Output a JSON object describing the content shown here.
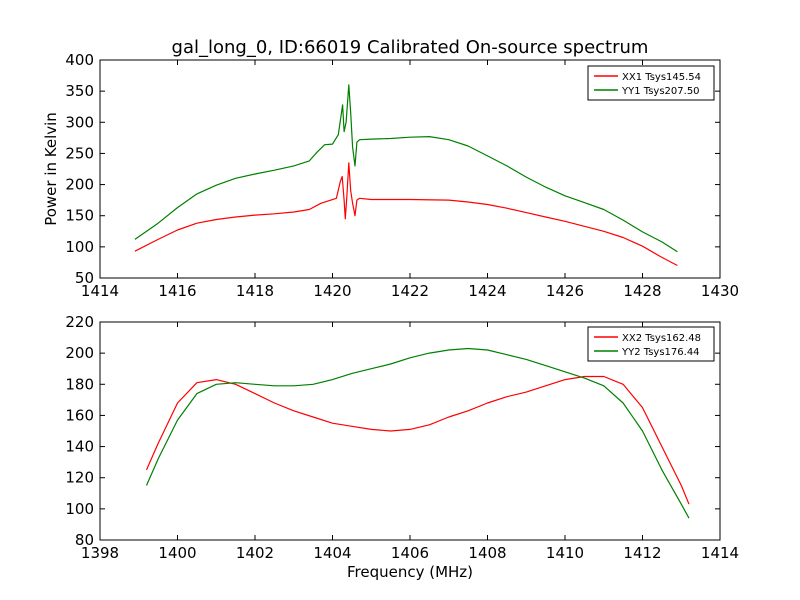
{
  "chart_data": [
    {
      "type": "line",
      "title": "gal_long_0, ID:66019 Calibrated On-source spectrum",
      "xlabel": "",
      "ylabel": "Power in Kelvin",
      "xlim": [
        1414,
        1430
      ],
      "ylim": [
        50,
        400
      ],
      "xticks": [
        "1414",
        "1416",
        "1418",
        "1420",
        "1422",
        "1424",
        "1426",
        "1428",
        "1430"
      ],
      "yticks": [
        "50",
        "100",
        "150",
        "200",
        "250",
        "300",
        "350",
        "400"
      ],
      "legend_position": "top-right",
      "series": [
        {
          "name": "XX1 Tsys145.54",
          "color": "#ff0000",
          "points": [
            [
              1414.9,
              93
            ],
            [
              1415.5,
              112
            ],
            [
              1416,
              127
            ],
            [
              1416.5,
              138
            ],
            [
              1417,
              144
            ],
            [
              1417.5,
              148
            ],
            [
              1418,
              151
            ],
            [
              1418.5,
              153
            ],
            [
              1419,
              156
            ],
            [
              1419.4,
              160
            ],
            [
              1419.7,
              170
            ],
            [
              1419.9,
              174
            ],
            [
              1420.1,
              178
            ],
            [
              1420.2,
              205
            ],
            [
              1420.25,
              213
            ],
            [
              1420.3,
              175
            ],
            [
              1420.33,
              145
            ],
            [
              1420.37,
              180
            ],
            [
              1420.42,
              235
            ],
            [
              1420.47,
              190
            ],
            [
              1420.52,
              170
            ],
            [
              1420.58,
              150
            ],
            [
              1420.63,
              175
            ],
            [
              1420.7,
              178
            ],
            [
              1421,
              176
            ],
            [
              1422,
              176
            ],
            [
              1423,
              175
            ],
            [
              1423.5,
              172
            ],
            [
              1424,
              168
            ],
            [
              1424.5,
              162
            ],
            [
              1425,
              155
            ],
            [
              1425.5,
              148
            ],
            [
              1426,
              141
            ],
            [
              1426.5,
              133
            ],
            [
              1427,
              125
            ],
            [
              1427.5,
              115
            ],
            [
              1428,
              101
            ],
            [
              1428.5,
              83
            ],
            [
              1428.9,
              70
            ]
          ]
        },
        {
          "name": "YY1 Tsys207.50",
          "color": "#008000",
          "points": [
            [
              1414.9,
              112
            ],
            [
              1415.5,
              138
            ],
            [
              1416,
              163
            ],
            [
              1416.5,
              185
            ],
            [
              1417,
              199
            ],
            [
              1417.5,
              210
            ],
            [
              1418,
              217
            ],
            [
              1418.5,
              223
            ],
            [
              1419,
              230
            ],
            [
              1419.4,
              238
            ],
            [
              1419.6,
              252
            ],
            [
              1419.8,
              264
            ],
            [
              1420,
              265
            ],
            [
              1420.15,
              280
            ],
            [
              1420.22,
              310
            ],
            [
              1420.26,
              328
            ],
            [
              1420.3,
              285
            ],
            [
              1420.35,
              300
            ],
            [
              1420.42,
              360
            ],
            [
              1420.47,
              315
            ],
            [
              1420.52,
              260
            ],
            [
              1420.58,
              230
            ],
            [
              1420.63,
              268
            ],
            [
              1420.7,
              272
            ],
            [
              1421,
              273
            ],
            [
              1421.5,
              274
            ],
            [
              1422,
              276
            ],
            [
              1422.5,
              277
            ],
            [
              1423,
              272
            ],
            [
              1423.5,
              262
            ],
            [
              1424,
              246
            ],
            [
              1424.5,
              230
            ],
            [
              1425,
              212
            ],
            [
              1425.5,
              196
            ],
            [
              1426,
              182
            ],
            [
              1426.5,
              171
            ],
            [
              1427,
              160
            ],
            [
              1427.5,
              143
            ],
            [
              1428,
              124
            ],
            [
              1428.5,
              108
            ],
            [
              1428.9,
              92
            ]
          ]
        }
      ]
    },
    {
      "type": "line",
      "title": "",
      "xlabel": "Frequency (MHz)",
      "ylabel": "",
      "xlim": [
        1398,
        1414
      ],
      "ylim": [
        80,
        220
      ],
      "xticks": [
        "1398",
        "1400",
        "1402",
        "1404",
        "1406",
        "1408",
        "1410",
        "1412",
        "1414"
      ],
      "yticks": [
        "80",
        "100",
        "120",
        "140",
        "160",
        "180",
        "200",
        "220"
      ],
      "legend_position": "top-right",
      "series": [
        {
          "name": "XX2 Tsys162.48",
          "color": "#ff0000",
          "points": [
            [
              1399.2,
              125
            ],
            [
              1399.5,
              142
            ],
            [
              1400,
              168
            ],
            [
              1400.5,
              181
            ],
            [
              1401,
              183
            ],
            [
              1401.5,
              180
            ],
            [
              1402,
              174
            ],
            [
              1402.5,
              168
            ],
            [
              1403,
              163
            ],
            [
              1403.5,
              159
            ],
            [
              1404,
              155
            ],
            [
              1404.5,
              153
            ],
            [
              1405,
              151
            ],
            [
              1405.5,
              150
            ],
            [
              1406,
              151
            ],
            [
              1406.5,
              154
            ],
            [
              1407,
              159
            ],
            [
              1407.5,
              163
            ],
            [
              1408,
              168
            ],
            [
              1408.5,
              172
            ],
            [
              1409,
              175
            ],
            [
              1409.5,
              179
            ],
            [
              1410,
              183
            ],
            [
              1410.5,
              185
            ],
            [
              1411,
              185
            ],
            [
              1411.5,
              180
            ],
            [
              1412,
              165
            ],
            [
              1412.5,
              140
            ],
            [
              1413,
              115
            ],
            [
              1413.2,
              103
            ]
          ]
        },
        {
          "name": "YY2 Tsys176.44",
          "color": "#008000",
          "points": [
            [
              1399.2,
              115
            ],
            [
              1399.5,
              132
            ],
            [
              1400,
              157
            ],
            [
              1400.5,
              174
            ],
            [
              1401,
              180
            ],
            [
              1401.5,
              181
            ],
            [
              1402,
              180
            ],
            [
              1402.5,
              179
            ],
            [
              1403,
              179
            ],
            [
              1403.5,
              180
            ],
            [
              1404,
              183
            ],
            [
              1404.5,
              187
            ],
            [
              1405,
              190
            ],
            [
              1405.5,
              193
            ],
            [
              1406,
              197
            ],
            [
              1406.5,
              200
            ],
            [
              1407,
              202
            ],
            [
              1407.5,
              203
            ],
            [
              1408,
              202
            ],
            [
              1408.5,
              199
            ],
            [
              1409,
              196
            ],
            [
              1409.5,
              192
            ],
            [
              1410,
              188
            ],
            [
              1410.5,
              184
            ],
            [
              1411,
              179
            ],
            [
              1411.5,
              168
            ],
            [
              1412,
              150
            ],
            [
              1412.5,
              125
            ],
            [
              1413,
              103
            ],
            [
              1413.2,
              94
            ]
          ]
        }
      ]
    }
  ]
}
